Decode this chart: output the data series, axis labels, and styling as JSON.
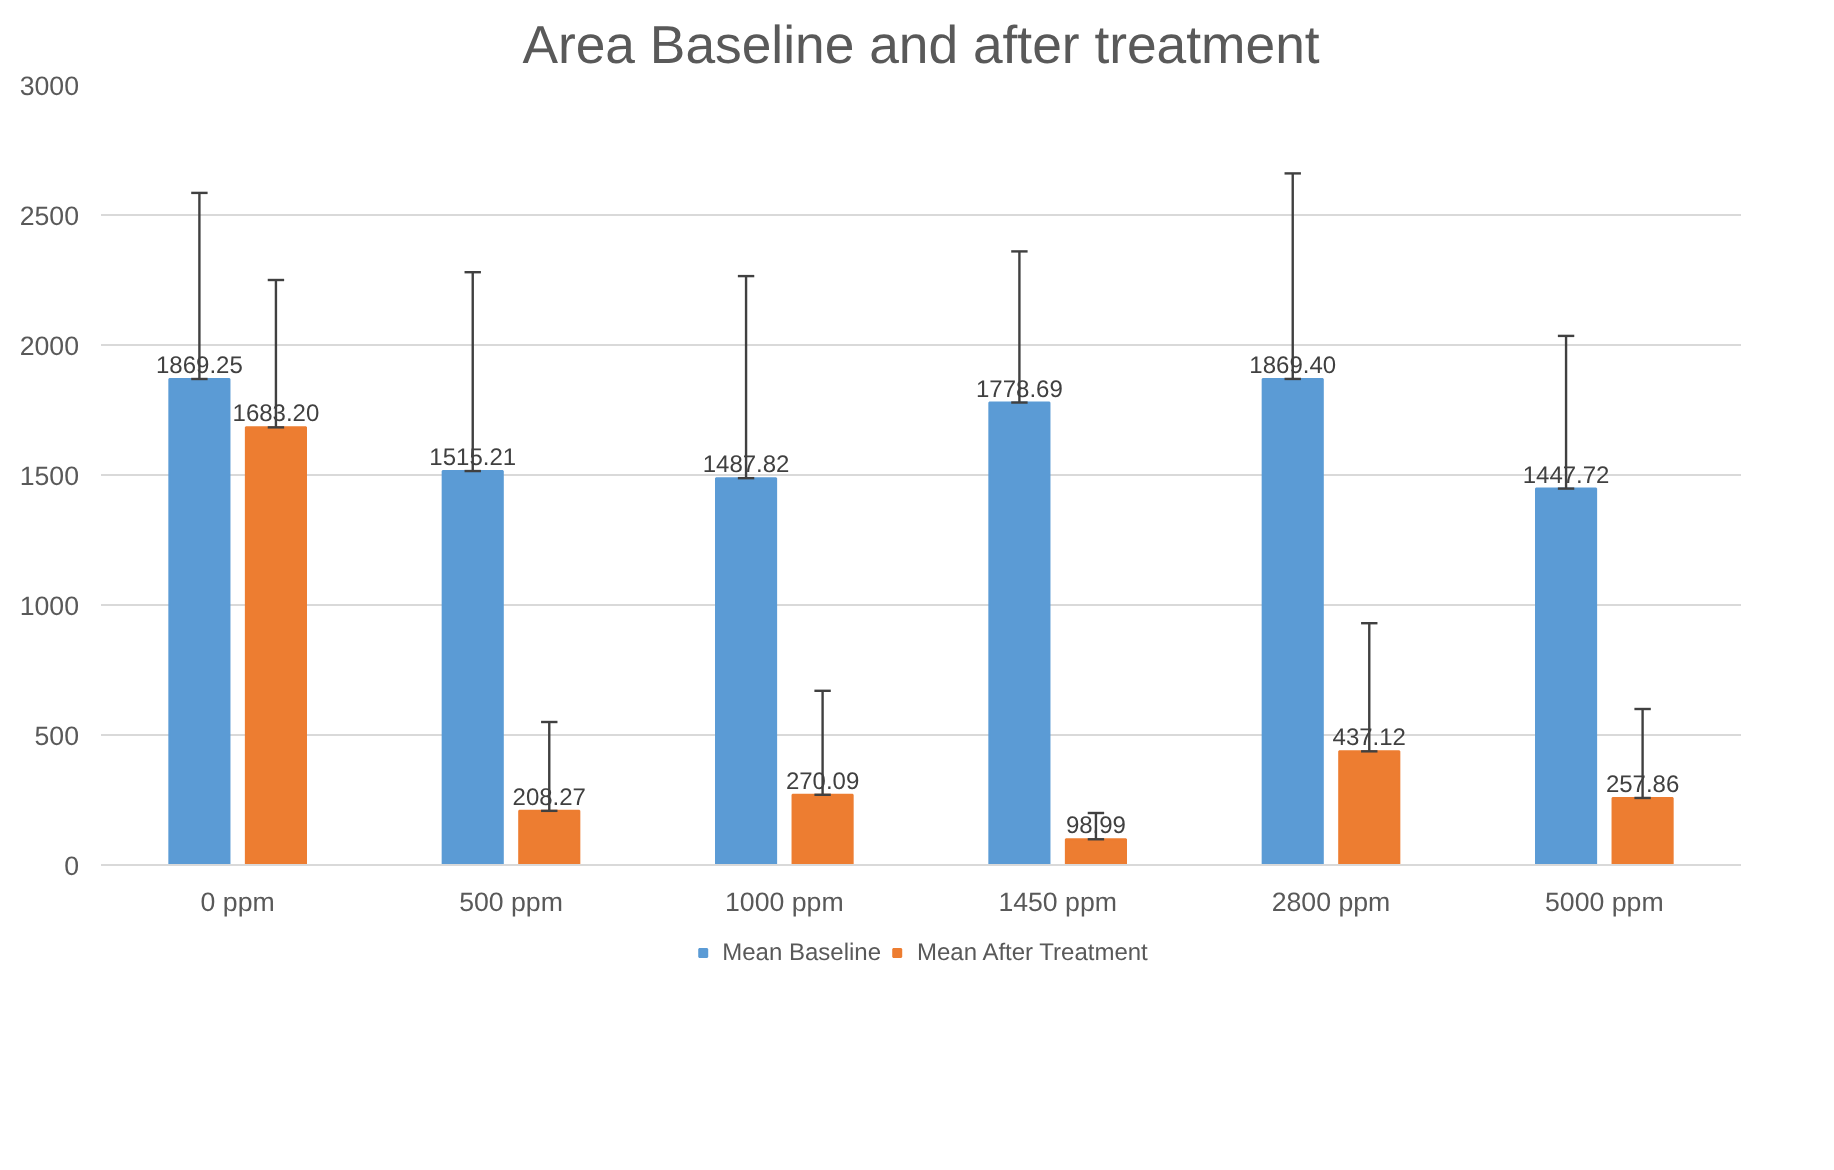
{
  "chart_data": {
    "type": "bar",
    "title": "Area Baseline and after treatment",
    "categories": [
      "0 ppm",
      "500 ppm",
      "1000 ppm",
      "1450 ppm",
      "2800 ppm",
      "5000 ppm"
    ],
    "series": [
      {
        "name": "Mean Baseline",
        "color": "#5b9bd5",
        "values": [
          1869.25,
          1515.21,
          1487.82,
          1778.69,
          1869.4,
          1447.72
        ],
        "value_labels": [
          "1869.25",
          "1515.21",
          "1487.82",
          "1778.69",
          "1869.40",
          "1447.72"
        ],
        "errors": [
          [
            1869.25,
            2585
          ],
          [
            1515.21,
            2280
          ],
          [
            1487.82,
            2265
          ],
          [
            1778.69,
            2360
          ],
          [
            1869.4,
            2660
          ],
          [
            1447.72,
            2035
          ]
        ]
      },
      {
        "name": "Mean After Treatment",
        "color": "#ed7d31",
        "values": [
          1683.2,
          208.27,
          270.09,
          98.99,
          437.12,
          257.86
        ],
        "value_labels": [
          "1683.20",
          "208.27",
          "270.09",
          "98.99",
          "437.12",
          "257.86"
        ],
        "errors": [
          [
            1683.2,
            2250
          ],
          [
            208.27,
            550
          ],
          [
            270.09,
            670
          ],
          [
            98.99,
            200
          ],
          [
            437.12,
            930
          ],
          [
            257.86,
            600
          ]
        ]
      }
    ],
    "ylim": [
      0,
      3000
    ],
    "yticks": [
      0,
      500,
      1000,
      1500,
      2000,
      2500,
      3000
    ],
    "grid": "y",
    "legend": "bottom"
  }
}
